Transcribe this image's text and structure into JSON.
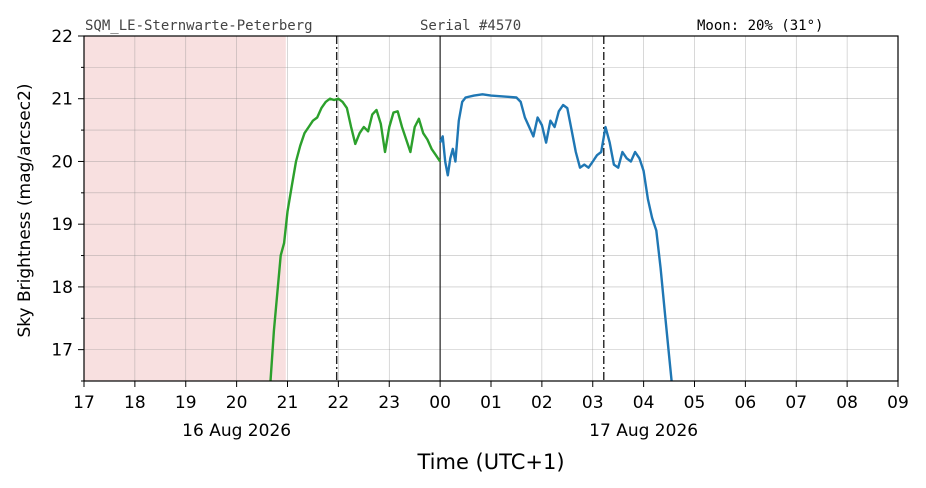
{
  "header": {
    "station": "SQM_LE-Sternwarte-Peterberg",
    "serial": "Serial #4570",
    "moon": "Moon: 20% (31°)"
  },
  "chart_data": {
    "type": "line",
    "xlabel": "Time (UTC+1)",
    "ylabel": "Sky Brightness (mag/arcsec2)",
    "xlim": [
      "2026-08-16T17:00",
      "2026-08-17T09:00"
    ],
    "ylim": [
      16.5,
      22
    ],
    "yticks": [
      17,
      18,
      19,
      20,
      21,
      22
    ],
    "xtick_labels": [
      "17",
      "18",
      "19",
      "20",
      "21",
      "22",
      "23",
      "00",
      "01",
      "02",
      "03",
      "04",
      "05",
      "06",
      "07",
      "08",
      "09"
    ],
    "date_labels": [
      {
        "text": "16 Aug 2026",
        "at": "2026-08-16T20:00"
      },
      {
        "text": "17 Aug 2026",
        "at": "2026-08-17T04:00"
      }
    ],
    "grid": true,
    "shaded_region": {
      "from": "2026-08-16T17:00",
      "to": "2026-08-16T20:58",
      "color": "#f8e0e0"
    },
    "vlines": [
      {
        "at": "2026-08-16T21:58",
        "style": "dashdot"
      },
      {
        "at": "2026-08-17T00:00",
        "style": "solid"
      },
      {
        "at": "2026-08-17T03:13",
        "style": "dashdot"
      }
    ],
    "series": [
      {
        "color": "#2ca02c",
        "points": [
          [
            "2026-08-16T20:40",
            16.5
          ],
          [
            "2026-08-16T20:44",
            17.3
          ],
          [
            "2026-08-16T20:48",
            17.9
          ],
          [
            "2026-08-16T20:52",
            18.5
          ],
          [
            "2026-08-16T20:56",
            18.7
          ],
          [
            "2026-08-16T21:00",
            19.2
          ],
          [
            "2026-08-16T21:05",
            19.6
          ],
          [
            "2026-08-16T21:10",
            20.0
          ],
          [
            "2026-08-16T21:15",
            20.25
          ],
          [
            "2026-08-16T21:20",
            20.45
          ],
          [
            "2026-08-16T21:25",
            20.55
          ],
          [
            "2026-08-16T21:30",
            20.65
          ],
          [
            "2026-08-16T21:35",
            20.7
          ],
          [
            "2026-08-16T21:40",
            20.85
          ],
          [
            "2026-08-16T21:45",
            20.95
          ],
          [
            "2026-08-16T21:50",
            21.0
          ],
          [
            "2026-08-16T21:55",
            20.98
          ],
          [
            "2026-08-16T22:00",
            21.0
          ],
          [
            "2026-08-16T22:05",
            20.95
          ],
          [
            "2026-08-16T22:10",
            20.85
          ],
          [
            "2026-08-16T22:15",
            20.55
          ],
          [
            "2026-08-16T22:20",
            20.28
          ],
          [
            "2026-08-16T22:25",
            20.45
          ],
          [
            "2026-08-16T22:30",
            20.55
          ],
          [
            "2026-08-16T22:35",
            20.48
          ],
          [
            "2026-08-16T22:40",
            20.75
          ],
          [
            "2026-08-16T22:45",
            20.82
          ],
          [
            "2026-08-16T22:50",
            20.6
          ],
          [
            "2026-08-16T22:55",
            20.15
          ],
          [
            "2026-08-16T23:00",
            20.55
          ],
          [
            "2026-08-16T23:05",
            20.78
          ],
          [
            "2026-08-16T23:10",
            20.8
          ],
          [
            "2026-08-16T23:15",
            20.55
          ],
          [
            "2026-08-16T23:20",
            20.35
          ],
          [
            "2026-08-16T23:25",
            20.15
          ],
          [
            "2026-08-16T23:30",
            20.55
          ],
          [
            "2026-08-16T23:35",
            20.68
          ],
          [
            "2026-08-16T23:40",
            20.45
          ],
          [
            "2026-08-16T23:45",
            20.35
          ],
          [
            "2026-08-16T23:50",
            20.2
          ],
          [
            "2026-08-16T23:55",
            20.1
          ],
          [
            "2026-08-17T00:00",
            20.0
          ]
        ]
      },
      {
        "color": "#1f77b4",
        "points": [
          [
            "2026-08-17T00:00",
            20.3
          ],
          [
            "2026-08-17T00:03",
            20.4
          ],
          [
            "2026-08-17T00:06",
            20.0
          ],
          [
            "2026-08-17T00:09",
            19.78
          ],
          [
            "2026-08-17T00:12",
            20.05
          ],
          [
            "2026-08-17T00:15",
            20.2
          ],
          [
            "2026-08-17T00:18",
            20.0
          ],
          [
            "2026-08-17T00:22",
            20.65
          ],
          [
            "2026-08-17T00:26",
            20.95
          ],
          [
            "2026-08-17T00:30",
            21.02
          ],
          [
            "2026-08-17T00:40",
            21.05
          ],
          [
            "2026-08-17T00:50",
            21.07
          ],
          [
            "2026-08-17T01:00",
            21.05
          ],
          [
            "2026-08-17T01:10",
            21.04
          ],
          [
            "2026-08-17T01:20",
            21.03
          ],
          [
            "2026-08-17T01:30",
            21.02
          ],
          [
            "2026-08-17T01:35",
            20.95
          ],
          [
            "2026-08-17T01:40",
            20.7
          ],
          [
            "2026-08-17T01:45",
            20.55
          ],
          [
            "2026-08-17T01:50",
            20.4
          ],
          [
            "2026-08-17T01:55",
            20.7
          ],
          [
            "2026-08-17T02:00",
            20.58
          ],
          [
            "2026-08-17T02:05",
            20.3
          ],
          [
            "2026-08-17T02:10",
            20.65
          ],
          [
            "2026-08-17T02:15",
            20.55
          ],
          [
            "2026-08-17T02:20",
            20.8
          ],
          [
            "2026-08-17T02:25",
            20.9
          ],
          [
            "2026-08-17T02:30",
            20.85
          ],
          [
            "2026-08-17T02:35",
            20.5
          ],
          [
            "2026-08-17T02:40",
            20.15
          ],
          [
            "2026-08-17T02:45",
            19.9
          ],
          [
            "2026-08-17T02:50",
            19.95
          ],
          [
            "2026-08-17T02:55",
            19.9
          ],
          [
            "2026-08-17T03:00",
            20.0
          ],
          [
            "2026-08-17T03:05",
            20.1
          ],
          [
            "2026-08-17T03:10",
            20.15
          ],
          [
            "2026-08-17T03:15",
            20.55
          ],
          [
            "2026-08-17T03:20",
            20.3
          ],
          [
            "2026-08-17T03:25",
            19.95
          ],
          [
            "2026-08-17T03:30",
            19.9
          ],
          [
            "2026-08-17T03:35",
            20.15
          ],
          [
            "2026-08-17T03:40",
            20.05
          ],
          [
            "2026-08-17T03:45",
            20.0
          ],
          [
            "2026-08-17T03:50",
            20.15
          ],
          [
            "2026-08-17T03:55",
            20.05
          ],
          [
            "2026-08-17T04:00",
            19.85
          ],
          [
            "2026-08-17T04:05",
            19.4
          ],
          [
            "2026-08-17T04:10",
            19.1
          ],
          [
            "2026-08-17T04:15",
            18.9
          ],
          [
            "2026-08-17T04:20",
            18.3
          ],
          [
            "2026-08-17T04:25",
            17.6
          ],
          [
            "2026-08-17T04:30",
            16.9
          ],
          [
            "2026-08-17T04:33",
            16.5
          ]
        ]
      }
    ]
  }
}
